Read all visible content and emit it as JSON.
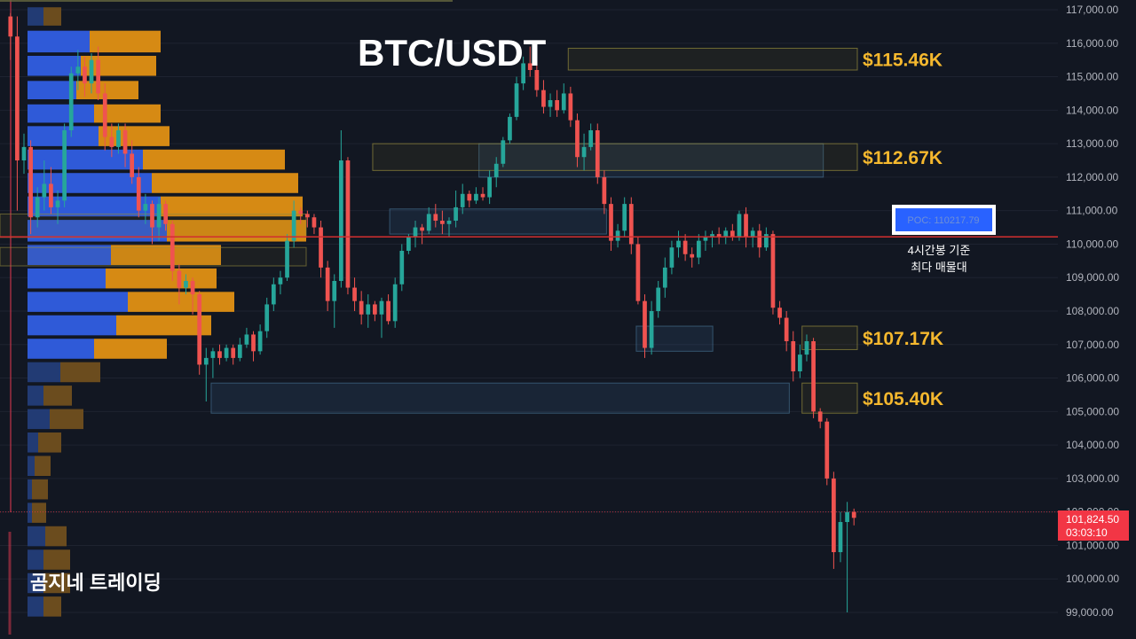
{
  "chart_data": {
    "type": "candlestick",
    "title": "BTC/USDT",
    "brand": "곰지네 트레이딩",
    "y_axis": {
      "min": 98800,
      "max": 117350,
      "ticks": [
        "117,000.00",
        "116,000.00",
        "115,000.00",
        "114,000.00",
        "113,000.00",
        "112,000.00",
        "111,000.00",
        "110,000.00",
        "109,000.00",
        "108,000.00",
        "107,000.00",
        "106,000.00",
        "105,000.00",
        "104,000.00",
        "103,000.00",
        "102,000.00",
        "101,000.00",
        "100,000.00",
        "99,000.00"
      ]
    },
    "current_price": {
      "value": "101,824.50",
      "countdown": "03:03:10",
      "color": "#f23645"
    },
    "poc": {
      "label": "POC: 110217.79",
      "value": 110217.79,
      "note_line1": "4시간봉 기준",
      "note_line2": "최다 매물대",
      "color": "#2962ff",
      "line_color": "#d32f2f"
    },
    "levels": [
      {
        "label": "$115.46K",
        "low": 115200,
        "high": 115850
      },
      {
        "label": "$112.67K",
        "low": 112200,
        "high": 113000
      },
      {
        "label": "$107.17K",
        "low": 106850,
        "high": 107550
      },
      {
        "label": "$105.40K",
        "low": 104950,
        "high": 105850
      }
    ],
    "zones_blue": [
      {
        "start": 0.555,
        "end": 0.96,
        "low": 112000,
        "high": 113000
      },
      {
        "start": 0.45,
        "end": 0.705,
        "low": 110300,
        "high": 111050
      },
      {
        "start": 0.74,
        "end": 0.83,
        "low": 106800,
        "high": 107550
      },
      {
        "start": 0.24,
        "end": 0.92,
        "low": 104950,
        "high": 105850
      }
    ],
    "volume_profile": [
      {
        "low": 116500,
        "high": 117100,
        "buy": 18,
        "sell": 20
      },
      {
        "low": 115700,
        "high": 116400,
        "buy": 70,
        "sell": 80
      },
      {
        "low": 115000,
        "high": 115650,
        "buy": 60,
        "sell": 85
      },
      {
        "low": 114300,
        "high": 114900,
        "buy": 55,
        "sell": 70
      },
      {
        "low": 113600,
        "high": 114200,
        "buy": 75,
        "sell": 75
      },
      {
        "low": 112900,
        "high": 113550,
        "buy": 80,
        "sell": 80
      },
      {
        "low": 112200,
        "high": 112850,
        "buy": 130,
        "sell": 160
      },
      {
        "low": 111500,
        "high": 112150,
        "buy": 140,
        "sell": 165
      },
      {
        "low": 110800,
        "high": 111450,
        "buy": 150,
        "sell": 160
      },
      {
        "low": 110050,
        "high": 110750,
        "buy": 157,
        "sell": 157
      },
      {
        "low": 109350,
        "high": 110000,
        "buy": 94,
        "sell": 124
      },
      {
        "low": 108650,
        "high": 109300,
        "buy": 88,
        "sell": 125
      },
      {
        "low": 107950,
        "high": 108600,
        "buy": 113,
        "sell": 120
      },
      {
        "low": 107250,
        "high": 107900,
        "buy": 100,
        "sell": 107
      },
      {
        "low": 106550,
        "high": 107200,
        "buy": 75,
        "sell": 82
      },
      {
        "low": 105850,
        "high": 106500,
        "buy": 37,
        "sell": 45
      },
      {
        "low": 105150,
        "high": 105800,
        "buy": 18,
        "sell": 32
      },
      {
        "low": 104450,
        "high": 105100,
        "buy": 25,
        "sell": 38
      },
      {
        "low": 103750,
        "high": 104400,
        "buy": 12,
        "sell": 26
      },
      {
        "low": 103050,
        "high": 103700,
        "buy": 8,
        "sell": 18
      },
      {
        "low": 102350,
        "high": 103000,
        "buy": 5,
        "sell": 18
      },
      {
        "low": 101650,
        "high": 102300,
        "buy": 5,
        "sell": 16
      },
      {
        "low": 100950,
        "high": 101600,
        "buy": 20,
        "sell": 24
      },
      {
        "low": 100250,
        "high": 100900,
        "buy": 18,
        "sell": 30
      },
      {
        "low": 99550,
        "high": 100200,
        "buy": 18,
        "sell": 30
      },
      {
        "low": 98850,
        "high": 99500,
        "buy": 18,
        "sell": 20
      }
    ],
    "candles": [
      [
        116800,
        116900,
        115500,
        116200
      ],
      [
        116200,
        116800,
        111000,
        112500
      ],
      [
        112500,
        113300,
        112100,
        112900
      ],
      [
        112900,
        113100,
        110300,
        110800
      ],
      [
        110800,
        111700,
        110500,
        111400
      ],
      [
        111400,
        112500,
        111000,
        111800
      ],
      [
        111800,
        112300,
        110900,
        111100
      ],
      [
        111100,
        111600,
        110600,
        111300
      ],
      [
        111300,
        113600,
        111100,
        113400
      ],
      [
        113400,
        115300,
        113200,
        115100
      ],
      [
        115100,
        115800,
        114600,
        115300
      ],
      [
        115300,
        115600,
        114400,
        114800
      ],
      [
        114800,
        115700,
        114500,
        115500
      ],
      [
        115500,
        115900,
        114300,
        114500
      ],
      [
        114500,
        114800,
        112800,
        113200
      ],
      [
        113200,
        113600,
        112600,
        112900
      ],
      [
        112900,
        113600,
        112700,
        113400
      ],
      [
        113400,
        113600,
        112300,
        112700
      ],
      [
        112700,
        113100,
        111800,
        112000
      ],
      [
        112000,
        112300,
        110800,
        111000
      ],
      [
        111000,
        111500,
        110600,
        111200
      ],
      [
        111200,
        111300,
        110000,
        110500
      ],
      [
        110500,
        111400,
        110100,
        111200
      ],
      [
        111200,
        111300,
        110400,
        110600
      ],
      [
        110600,
        110700,
        108900,
        109200
      ],
      [
        109200,
        109400,
        108200,
        108700
      ],
      [
        108700,
        109100,
        108500,
        108900
      ],
      [
        108900,
        109000,
        107900,
        108500
      ],
      [
        108500,
        108600,
        106100,
        106400
      ],
      [
        106400,
        106900,
        105300,
        106600
      ],
      [
        106600,
        106900,
        106000,
        106800
      ],
      [
        106800,
        107000,
        106400,
        106600
      ],
      [
        106600,
        107000,
        106500,
        106900
      ],
      [
        106900,
        107000,
        106400,
        106600
      ],
      [
        106600,
        107200,
        106500,
        107000
      ],
      [
        107000,
        107500,
        106900,
        107300
      ],
      [
        107300,
        107400,
        106500,
        106800
      ],
      [
        106800,
        107600,
        106700,
        107400
      ],
      [
        107400,
        108400,
        107200,
        108200
      ],
      [
        108200,
        109000,
        108000,
        108800
      ],
      [
        108800,
        109200,
        108500,
        109000
      ],
      [
        109000,
        110300,
        108900,
        110100
      ],
      [
        110100,
        111300,
        109900,
        111000
      ],
      [
        111000,
        111100,
        110600,
        110900
      ],
      [
        110900,
        111000,
        110500,
        110800
      ],
      [
        110800,
        110900,
        110300,
        110500
      ],
      [
        110500,
        110700,
        109000,
        109300
      ],
      [
        109300,
        109500,
        108000,
        108300
      ],
      [
        108300,
        109100,
        107500,
        108900
      ],
      [
        108900,
        113400,
        108700,
        112500
      ],
      [
        112500,
        112600,
        108500,
        108700
      ],
      [
        108700,
        109000,
        108000,
        108300
      ],
      [
        108300,
        108600,
        107600,
        107900
      ],
      [
        107900,
        108500,
        107500,
        108200
      ],
      [
        108200,
        108300,
        107700,
        107900
      ],
      [
        107900,
        108400,
        107200,
        108300
      ],
      [
        108300,
        108500,
        107600,
        107700
      ],
      [
        107700,
        109000,
        107500,
        108800
      ],
      [
        108800,
        110000,
        108600,
        109800
      ],
      [
        109800,
        110300,
        109700,
        110200
      ],
      [
        110200,
        110700,
        109900,
        110500
      ],
      [
        110500,
        110600,
        110000,
        110400
      ],
      [
        110400,
        111100,
        110300,
        110900
      ],
      [
        110900,
        111200,
        110500,
        110700
      ],
      [
        110700,
        111000,
        110300,
        110600
      ],
      [
        110600,
        110800,
        110200,
        110700
      ],
      [
        110700,
        111600,
        110500,
        111100
      ],
      [
        111100,
        111800,
        110900,
        111500
      ],
      [
        111500,
        111600,
        111100,
        111300
      ],
      [
        111300,
        111700,
        111200,
        111500
      ],
      [
        111500,
        111700,
        111300,
        111400
      ],
      [
        111400,
        112200,
        111200,
        112000
      ],
      [
        112000,
        112600,
        111700,
        112400
      ],
      [
        112400,
        113200,
        112300,
        113100
      ],
      [
        113100,
        113900,
        113000,
        113800
      ],
      [
        113800,
        115000,
        113700,
        114800
      ],
      [
        114800,
        115600,
        114600,
        115400
      ],
      [
        115400,
        115900,
        115000,
        115200
      ],
      [
        115200,
        115400,
        114400,
        114600
      ],
      [
        114600,
        114900,
        113900,
        114100
      ],
      [
        114100,
        114500,
        113800,
        114300
      ],
      [
        114300,
        114600,
        113800,
        114000
      ],
      [
        114000,
        114800,
        113900,
        114500
      ],
      [
        114500,
        114700,
        113500,
        113700
      ],
      [
        113700,
        113900,
        112300,
        112600
      ],
      [
        112600,
        113300,
        112200,
        112900
      ],
      [
        112900,
        113600,
        112800,
        113400
      ],
      [
        113400,
        113600,
        111800,
        112000
      ],
      [
        112000,
        112200,
        110900,
        111200
      ],
      [
        111200,
        111400,
        109800,
        110100
      ],
      [
        110100,
        110600,
        109900,
        110400
      ],
      [
        110400,
        111400,
        110200,
        111200
      ],
      [
        111200,
        111400,
        109700,
        110000
      ],
      [
        110000,
        110200,
        108200,
        108300
      ],
      [
        108300,
        108500,
        106600,
        106900
      ],
      [
        106900,
        108300,
        106700,
        108000
      ],
      [
        108000,
        108900,
        107800,
        108700
      ],
      [
        108700,
        109600,
        108400,
        109300
      ],
      [
        109300,
        110100,
        109100,
        109900
      ],
      [
        109900,
        110400,
        109600,
        110100
      ],
      [
        110100,
        110300,
        109500,
        109700
      ],
      [
        109700,
        109900,
        109300,
        109600
      ],
      [
        109600,
        110300,
        109400,
        110100
      ],
      [
        110100,
        110400,
        109800,
        110200
      ],
      [
        110200,
        110400,
        109900,
        110300
      ],
      [
        110300,
        110500,
        110000,
        110200
      ],
      [
        110200,
        110500,
        110000,
        110400
      ],
      [
        110400,
        110600,
        110100,
        110200
      ],
      [
        110200,
        111000,
        110100,
        110900
      ],
      [
        110900,
        111100,
        109900,
        110200
      ],
      [
        110200,
        110500,
        109900,
        110400
      ],
      [
        110400,
        110600,
        109600,
        109900
      ],
      [
        109900,
        110500,
        109800,
        110300
      ],
      [
        110300,
        110400,
        107900,
        108100
      ],
      [
        108100,
        108300,
        107600,
        107800
      ],
      [
        107800,
        108000,
        106800,
        107100
      ],
      [
        107100,
        107400,
        105900,
        106200
      ],
      [
        106200,
        107000,
        106000,
        106700
      ],
      [
        106700,
        107300,
        106500,
        107100
      ],
      [
        107100,
        107200,
        104800,
        105000
      ],
      [
        105000,
        105100,
        104500,
        104700
      ],
      [
        104700,
        104800,
        102800,
        103000
      ],
      [
        103000,
        103200,
        100300,
        100800
      ],
      [
        100800,
        102000,
        100500,
        101700
      ],
      [
        101700,
        102300,
        99000,
        102000
      ],
      [
        102000,
        102100,
        101600,
        101824.5
      ]
    ]
  }
}
